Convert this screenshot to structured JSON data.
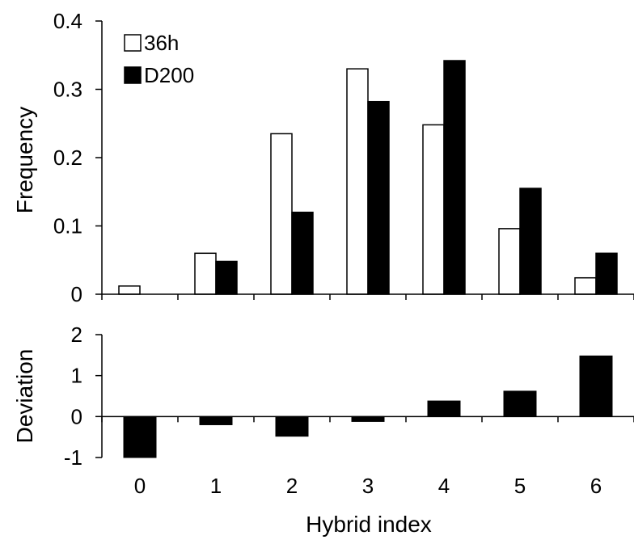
{
  "chart_data": [
    {
      "type": "bar",
      "categories": [
        "0",
        "1",
        "2",
        "3",
        "4",
        "5",
        "6"
      ],
      "series": [
        {
          "name": "36h",
          "values": [
            0.012,
            0.06,
            0.235,
            0.33,
            0.248,
            0.096,
            0.024
          ],
          "color": "#ffffff"
        },
        {
          "name": "D200",
          "values": [
            0.0,
            0.048,
            0.12,
            0.282,
            0.342,
            0.155,
            0.06
          ],
          "color": "#000000"
        }
      ],
      "xlabel": "",
      "ylabel": "Frequency",
      "ylim": [
        0,
        0.4
      ],
      "yticks": [
        "0",
        "0.1",
        "0.2",
        "0.3",
        "0.4"
      ],
      "legend_position": "top-left",
      "grid": false
    },
    {
      "type": "bar",
      "categories": [
        "0",
        "1",
        "2",
        "3",
        "4",
        "5",
        "6"
      ],
      "values": [
        -1.0,
        -0.2,
        -0.48,
        -0.12,
        0.38,
        0.62,
        1.48
      ],
      "color": "#000000",
      "xlabel": "Hybrid index",
      "ylabel": "Deviation",
      "ylim": [
        -1,
        2
      ],
      "yticks": [
        "-1",
        "0",
        "1",
        "2"
      ],
      "xticks": [
        "0",
        "1",
        "2",
        "3",
        "4",
        "5",
        "6"
      ],
      "grid": false
    }
  ]
}
